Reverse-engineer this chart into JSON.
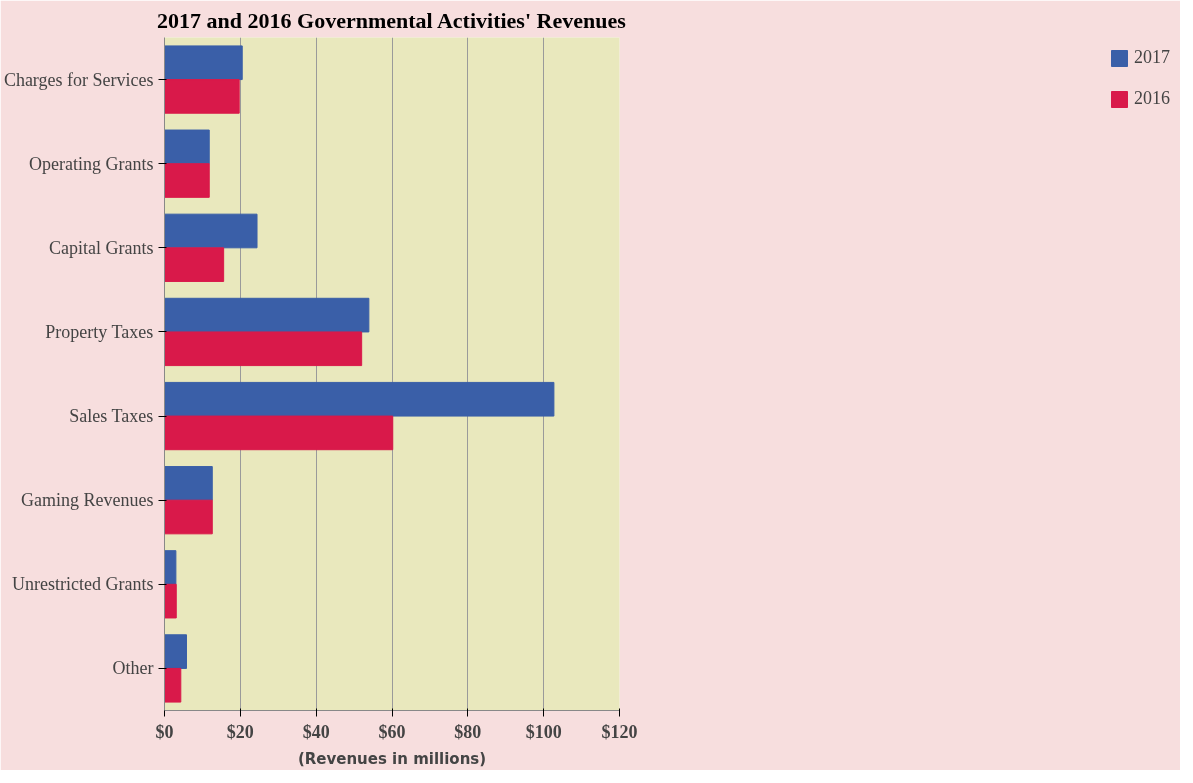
{
  "chart_data": {
    "type": "bar",
    "orientation": "horizontal",
    "title": "2017 and 2016 Governmental Activities' Revenues",
    "xlabel": "(Revenues in millions)",
    "categories": [
      "Charges for Services",
      "Operating Grants",
      "Capital Grants",
      "Property Taxes",
      "Sales Taxes",
      "Gaming Revenues",
      "Unrestricted Grants",
      "Other"
    ],
    "series": [
      {
        "name": "2017",
        "color": "#3a5fa8",
        "values": [
          20.5,
          11.8,
          24.4,
          53.9,
          102.7,
          12.6,
          3.0,
          5.8
        ]
      },
      {
        "name": "2016",
        "color": "#d9194a",
        "values": [
          19.7,
          11.8,
          15.6,
          52.0,
          60.2,
          12.6,
          3.1,
          4.3
        ]
      }
    ],
    "xlim": [
      0,
      120
    ],
    "xticks": [
      {
        "value": 0,
        "label": "$0"
      },
      {
        "value": 20,
        "label": "$20"
      },
      {
        "value": 40,
        "label": "$40"
      },
      {
        "value": 60,
        "label": "$60"
      },
      {
        "value": 80,
        "label": "$80"
      },
      {
        "value": 100,
        "label": "$100"
      },
      {
        "value": 120,
        "label": "$120"
      }
    ],
    "grid": "x",
    "legend": "right"
  }
}
